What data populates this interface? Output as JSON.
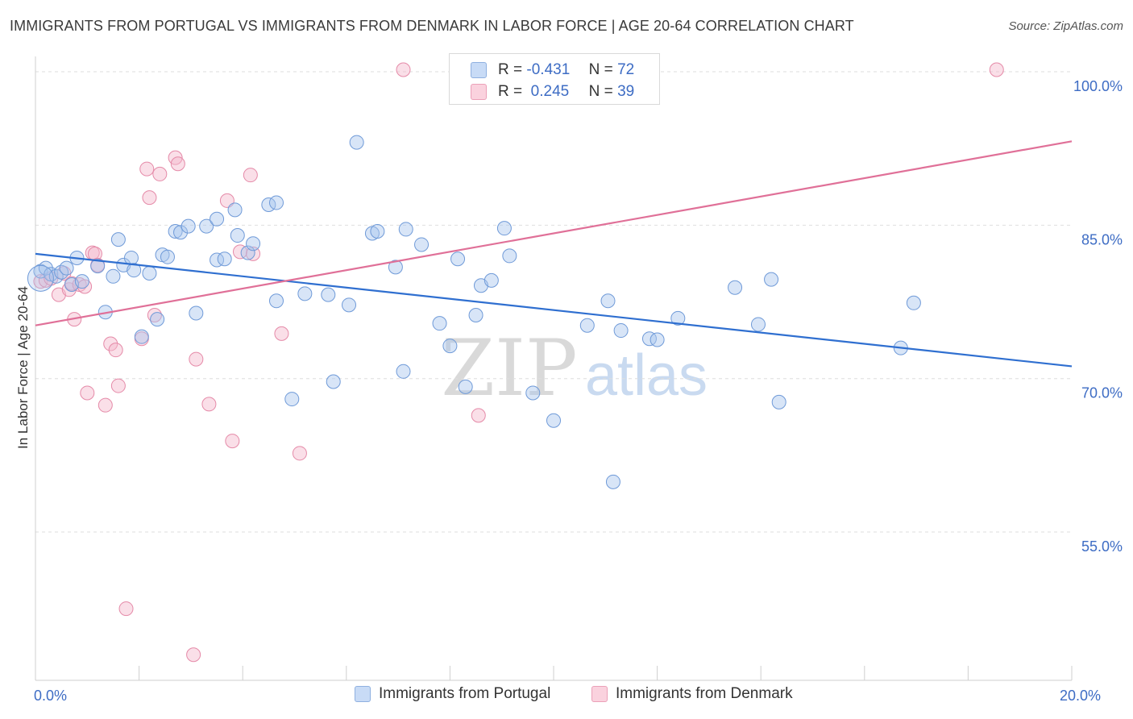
{
  "title": "IMMIGRANTS FROM PORTUGAL VS IMMIGRANTS FROM DENMARK IN LABOR FORCE | AGE 20-64 CORRELATION CHART",
  "source": "Source: ZipAtlas.com",
  "watermark": {
    "zip": "ZIP",
    "atlas": "atlas"
  },
  "stats": [
    {
      "r_label": "R =",
      "r_value": "-0.431",
      "n_label": "N =",
      "n_value": "72",
      "color": "#a9c5ee"
    },
    {
      "r_label": "R =",
      "r_value": " 0.245",
      "n_label": "N =",
      "n_value": "39",
      "color": "#f5b8cb"
    }
  ],
  "legend": [
    {
      "label": "Immigrants from Portugal",
      "color": "#a9c5ee"
    },
    {
      "label": "Immigrants from Denmark",
      "color": "#f5b8cb"
    }
  ],
  "colors": {
    "portugal_fill": "#a9c5ee",
    "portugal_stroke": "#6f9ad8",
    "portugal_line": "#2f6fd0",
    "denmark_fill": "#f5b8cb",
    "denmark_stroke": "#e58aa8",
    "denmark_line": "#e07098",
    "tick_label": "#3d6cc4",
    "grid": "#dedede"
  },
  "chart_data": {
    "type": "scatter",
    "ylabel": "In Labor Force | Age 20-64",
    "xlim": [
      0,
      20
    ],
    "ylim": [
      40.5,
      101.5
    ],
    "x_tick_labels": [
      {
        "value": 0,
        "label": "0.0%"
      },
      {
        "value": 20,
        "label": "20.0%"
      }
    ],
    "y_tick_labels": [
      {
        "value": 100,
        "label": "100.0%"
      },
      {
        "value": 85,
        "label": "85.0%"
      },
      {
        "value": 70,
        "label": "70.0%"
      },
      {
        "value": 55,
        "label": "55.0%"
      }
    ],
    "grid": true,
    "series": [
      {
        "name": "Immigrants from Portugal",
        "color": "#a9c5ee",
        "trend": {
          "x": [
            0,
            20
          ],
          "y": [
            82.2,
            71.2
          ]
        },
        "points": [
          [
            0.1,
            80.5
          ],
          [
            0.2,
            80.8
          ],
          [
            0.3,
            80.2
          ],
          [
            0.4,
            80.0
          ],
          [
            0.5,
            80.4
          ],
          [
            0.6,
            80.8
          ],
          [
            0.7,
            79.2
          ],
          [
            0.8,
            81.8
          ],
          [
            0.9,
            79.5
          ],
          [
            1.2,
            81.0
          ],
          [
            1.35,
            76.5
          ],
          [
            1.5,
            80.0
          ],
          [
            1.6,
            83.6
          ],
          [
            1.7,
            81.1
          ],
          [
            1.85,
            81.8
          ],
          [
            1.9,
            80.6
          ],
          [
            2.05,
            74.1
          ],
          [
            2.2,
            80.3
          ],
          [
            2.35,
            75.8
          ],
          [
            2.45,
            82.1
          ],
          [
            2.55,
            81.9
          ],
          [
            2.7,
            84.4
          ],
          [
            2.8,
            84.3
          ],
          [
            2.95,
            84.9
          ],
          [
            3.1,
            76.4
          ],
          [
            3.3,
            84.9
          ],
          [
            3.5,
            85.6
          ],
          [
            3.5,
            81.6
          ],
          [
            3.65,
            81.7
          ],
          [
            3.85,
            86.5
          ],
          [
            3.9,
            84.0
          ],
          [
            4.1,
            82.3
          ],
          [
            4.2,
            83.2
          ],
          [
            4.5,
            87.0
          ],
          [
            4.65,
            87.2
          ],
          [
            4.65,
            77.6
          ],
          [
            4.95,
            68.0
          ],
          [
            5.2,
            78.3
          ],
          [
            5.65,
            78.2
          ],
          [
            5.75,
            69.7
          ],
          [
            6.05,
            77.2
          ],
          [
            6.2,
            93.1
          ],
          [
            6.5,
            84.2
          ],
          [
            6.6,
            84.4
          ],
          [
            6.95,
            80.9
          ],
          [
            7.15,
            84.6
          ],
          [
            7.1,
            70.7
          ],
          [
            7.45,
            83.1
          ],
          [
            7.8,
            75.4
          ],
          [
            8.0,
            73.2
          ],
          [
            8.15,
            81.7
          ],
          [
            8.3,
            69.2
          ],
          [
            8.5,
            76.2
          ],
          [
            8.6,
            79.1
          ],
          [
            8.8,
            79.6
          ],
          [
            9.05,
            84.7
          ],
          [
            9.15,
            82.0
          ],
          [
            9.6,
            68.6
          ],
          [
            10.0,
            65.9
          ],
          [
            10.65,
            75.2
          ],
          [
            11.05,
            77.6
          ],
          [
            11.15,
            59.9
          ],
          [
            11.3,
            74.7
          ],
          [
            11.85,
            73.9
          ],
          [
            12.0,
            73.8
          ],
          [
            12.4,
            75.9
          ],
          [
            13.5,
            78.9
          ],
          [
            13.95,
            75.3
          ],
          [
            14.2,
            79.7
          ],
          [
            14.35,
            67.7
          ],
          [
            16.7,
            73.0
          ],
          [
            16.95,
            77.4
          ]
        ]
      },
      {
        "name": "Immigrants from Denmark",
        "color": "#f5b8cb",
        "trend": {
          "x": [
            0,
            20
          ],
          "y": [
            75.2,
            93.2
          ]
        },
        "points": [
          [
            0.1,
            79.5
          ],
          [
            0.2,
            79.6
          ],
          [
            0.3,
            79.8
          ],
          [
            0.45,
            78.2
          ],
          [
            0.55,
            80.3
          ],
          [
            0.65,
            78.7
          ],
          [
            0.7,
            79.3
          ],
          [
            0.75,
            75.8
          ],
          [
            0.85,
            79.2
          ],
          [
            0.95,
            79.0
          ],
          [
            1.0,
            68.6
          ],
          [
            1.1,
            82.3
          ],
          [
            1.15,
            82.2
          ],
          [
            1.2,
            81.1
          ],
          [
            1.35,
            67.4
          ],
          [
            1.45,
            73.4
          ],
          [
            1.55,
            72.8
          ],
          [
            1.6,
            69.3
          ],
          [
            1.75,
            47.5
          ],
          [
            2.05,
            73.9
          ],
          [
            2.15,
            90.5
          ],
          [
            2.2,
            87.7
          ],
          [
            2.4,
            90.0
          ],
          [
            2.3,
            76.2
          ],
          [
            2.7,
            91.6
          ],
          [
            2.75,
            91.0
          ],
          [
            3.05,
            43.0
          ],
          [
            3.1,
            71.9
          ],
          [
            3.35,
            67.5
          ],
          [
            3.7,
            87.4
          ],
          [
            3.8,
            63.9
          ],
          [
            3.95,
            82.4
          ],
          [
            4.15,
            89.9
          ],
          [
            4.75,
            74.4
          ],
          [
            5.1,
            62.7
          ],
          [
            7.1,
            100.2
          ],
          [
            8.55,
            66.4
          ],
          [
            18.55,
            100.2
          ],
          [
            4.2,
            82.2
          ]
        ]
      }
    ]
  }
}
